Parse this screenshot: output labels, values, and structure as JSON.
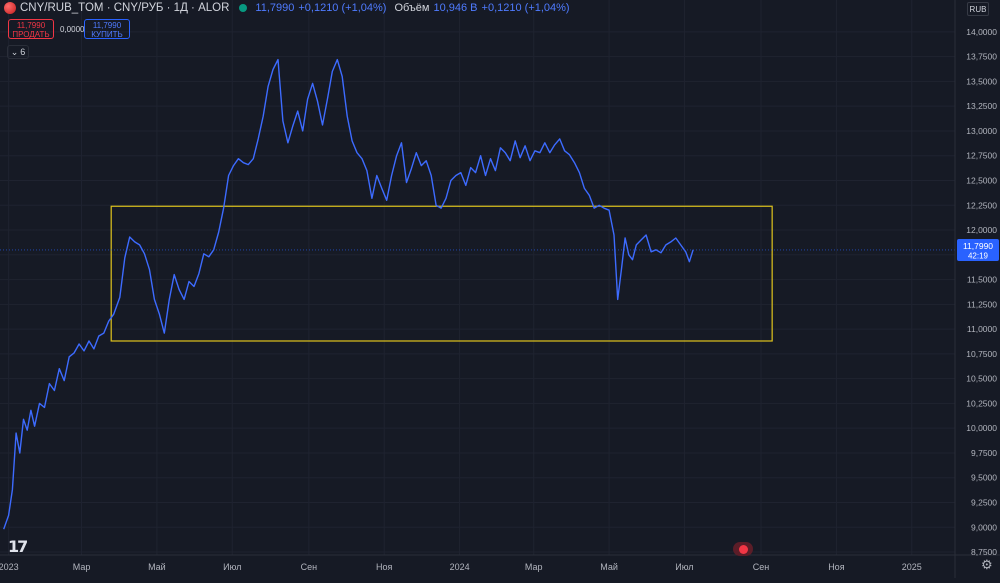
{
  "header": {
    "title": "CNY/RUB_TOM · CNY/РУБ · 1Д · ALOR",
    "price": "11,7990",
    "change": "+0,1210 (+1,04%)",
    "volume_label": "Объём",
    "volume_value": "10,946 B",
    "volume_change": "+0,1210 (+1,04%)"
  },
  "trade": {
    "sell_price": "11,7990",
    "sell_label": "ПРОДАТЬ",
    "spread": "0,0000",
    "buy_price": "11,7990",
    "buy_label": "КУПИТЬ"
  },
  "collapse_label": "6",
  "currency": "RUB",
  "last_price_label": {
    "price": "11,7990",
    "countdown": "42:19"
  },
  "colors": {
    "line": "#2962ff",
    "rect": "#e0c41c",
    "sell": "#f23645",
    "buy": "#2962ff"
  },
  "icons": {
    "logo": "tradingview-logo-icon",
    "settings": "gear-icon",
    "indicator": "record-dot-icon"
  },
  "chart_data": {
    "type": "line",
    "y_ticks": [
      "14,0000",
      "13,7500",
      "13,5000",
      "13,2500",
      "13,0000",
      "12,7500",
      "12,5000",
      "12,2500",
      "12,0000",
      "11,7500",
      "11,5000",
      "11,2500",
      "11,0000",
      "10,7500",
      "10,5000",
      "10,2500",
      "10,0000",
      "9,7500",
      "9,5000",
      "9,2500",
      "9,0000",
      "8,7500"
    ],
    "y_range": [
      8.72,
      14.14
    ],
    "x_ticks": [
      {
        "label": "2023",
        "date": "2023-01-01"
      },
      {
        "label": "Мар",
        "date": "2023-03-01"
      },
      {
        "label": "Май",
        "date": "2023-05-01"
      },
      {
        "label": "Июл",
        "date": "2023-07-01"
      },
      {
        "label": "Сен",
        "date": "2023-09-01"
      },
      {
        "label": "Ноя",
        "date": "2023-11-01"
      },
      {
        "label": "2024",
        "date": "2024-01-01"
      },
      {
        "label": "Мар",
        "date": "2024-03-01"
      },
      {
        "label": "Май",
        "date": "2024-05-01"
      },
      {
        "label": "Июл",
        "date": "2024-07-01"
      },
      {
        "label": "Сен",
        "date": "2024-09-01"
      },
      {
        "label": "Ноя",
        "date": "2024-11-01"
      },
      {
        "label": "2025",
        "date": "2025-01-01"
      }
    ],
    "x_range": [
      "2022-12-25",
      "2025-02-05"
    ],
    "series": [
      {
        "points": [
          [
            "2022-12-28",
            8.98
          ],
          [
            "2023-01-01",
            9.12
          ],
          [
            "2023-01-04",
            9.38
          ],
          [
            "2023-01-07",
            9.95
          ],
          [
            "2023-01-10",
            9.75
          ],
          [
            "2023-01-13",
            10.09
          ],
          [
            "2023-01-16",
            9.98
          ],
          [
            "2023-01-19",
            10.18
          ],
          [
            "2023-01-22",
            10.02
          ],
          [
            "2023-01-26",
            10.25
          ],
          [
            "2023-01-30",
            10.21
          ],
          [
            "2023-02-03",
            10.45
          ],
          [
            "2023-02-07",
            10.38
          ],
          [
            "2023-02-11",
            10.6
          ],
          [
            "2023-02-15",
            10.48
          ],
          [
            "2023-02-19",
            10.72
          ],
          [
            "2023-02-23",
            10.76
          ],
          [
            "2023-02-27",
            10.85
          ],
          [
            "2023-03-03",
            10.78
          ],
          [
            "2023-03-07",
            10.88
          ],
          [
            "2023-03-11",
            10.8
          ],
          [
            "2023-03-15",
            10.93
          ],
          [
            "2023-03-19",
            10.96
          ],
          [
            "2023-03-23",
            11.08
          ],
          [
            "2023-03-27",
            11.15
          ],
          [
            "2023-04-01",
            11.32
          ],
          [
            "2023-04-05",
            11.72
          ],
          [
            "2023-04-09",
            11.93
          ],
          [
            "2023-04-13",
            11.88
          ],
          [
            "2023-04-17",
            11.85
          ],
          [
            "2023-04-21",
            11.76
          ],
          [
            "2023-04-25",
            11.6
          ],
          [
            "2023-04-29",
            11.3
          ],
          [
            "2023-05-03",
            11.15
          ],
          [
            "2023-05-07",
            10.96
          ],
          [
            "2023-05-11",
            11.3
          ],
          [
            "2023-05-15",
            11.55
          ],
          [
            "2023-05-19",
            11.4
          ],
          [
            "2023-05-23",
            11.3
          ],
          [
            "2023-05-27",
            11.48
          ],
          [
            "2023-05-31",
            11.43
          ],
          [
            "2023-06-04",
            11.56
          ],
          [
            "2023-06-08",
            11.76
          ],
          [
            "2023-06-12",
            11.73
          ],
          [
            "2023-06-16",
            11.8
          ],
          [
            "2023-06-20",
            11.98
          ],
          [
            "2023-06-24",
            12.22
          ],
          [
            "2023-06-28",
            12.55
          ],
          [
            "2023-07-02",
            12.65
          ],
          [
            "2023-07-06",
            12.72
          ],
          [
            "2023-07-10",
            12.68
          ],
          [
            "2023-07-14",
            12.66
          ],
          [
            "2023-07-18",
            12.72
          ],
          [
            "2023-07-22",
            12.92
          ],
          [
            "2023-07-26",
            13.15
          ],
          [
            "2023-07-30",
            13.45
          ],
          [
            "2023-08-03",
            13.62
          ],
          [
            "2023-08-07",
            13.72
          ],
          [
            "2023-08-11",
            13.1
          ],
          [
            "2023-08-15",
            12.88
          ],
          [
            "2023-08-19",
            13.05
          ],
          [
            "2023-08-23",
            13.2
          ],
          [
            "2023-08-27",
            13.0
          ],
          [
            "2023-08-31",
            13.32
          ],
          [
            "2023-09-04",
            13.48
          ],
          [
            "2023-09-08",
            13.3
          ],
          [
            "2023-09-12",
            13.06
          ],
          [
            "2023-09-16",
            13.32
          ],
          [
            "2023-09-20",
            13.6
          ],
          [
            "2023-09-24",
            13.72
          ],
          [
            "2023-09-28",
            13.55
          ],
          [
            "2023-10-02",
            13.15
          ],
          [
            "2023-10-06",
            12.9
          ],
          [
            "2023-10-10",
            12.78
          ],
          [
            "2023-10-14",
            12.72
          ],
          [
            "2023-10-18",
            12.6
          ],
          [
            "2023-10-22",
            12.32
          ],
          [
            "2023-10-26",
            12.55
          ],
          [
            "2023-10-30",
            12.42
          ],
          [
            "2023-11-03",
            12.3
          ],
          [
            "2023-11-07",
            12.55
          ],
          [
            "2023-11-11",
            12.75
          ],
          [
            "2023-11-15",
            12.88
          ],
          [
            "2023-11-19",
            12.48
          ],
          [
            "2023-11-23",
            12.62
          ],
          [
            "2023-11-27",
            12.78
          ],
          [
            "2023-12-01",
            12.65
          ],
          [
            "2023-12-05",
            12.7
          ],
          [
            "2023-12-09",
            12.55
          ],
          [
            "2023-12-13",
            12.25
          ],
          [
            "2023-12-17",
            12.22
          ],
          [
            "2023-12-21",
            12.32
          ],
          [
            "2023-12-25",
            12.5
          ],
          [
            "2023-12-29",
            12.55
          ],
          [
            "2024-01-02",
            12.58
          ],
          [
            "2024-01-06",
            12.45
          ],
          [
            "2024-01-10",
            12.63
          ],
          [
            "2024-01-14",
            12.58
          ],
          [
            "2024-01-18",
            12.75
          ],
          [
            "2024-01-22",
            12.55
          ],
          [
            "2024-01-26",
            12.72
          ],
          [
            "2024-01-30",
            12.6
          ],
          [
            "2024-02-03",
            12.83
          ],
          [
            "2024-02-07",
            12.78
          ],
          [
            "2024-02-11",
            12.7
          ],
          [
            "2024-02-15",
            12.9
          ],
          [
            "2024-02-19",
            12.73
          ],
          [
            "2024-02-23",
            12.85
          ],
          [
            "2024-02-27",
            12.7
          ],
          [
            "2024-03-02",
            12.8
          ],
          [
            "2024-03-06",
            12.78
          ],
          [
            "2024-03-10",
            12.88
          ],
          [
            "2024-03-14",
            12.78
          ],
          [
            "2024-03-18",
            12.86
          ],
          [
            "2024-03-22",
            12.92
          ],
          [
            "2024-03-26",
            12.8
          ],
          [
            "2024-03-30",
            12.76
          ],
          [
            "2024-04-03",
            12.68
          ],
          [
            "2024-04-07",
            12.58
          ],
          [
            "2024-04-11",
            12.42
          ],
          [
            "2024-04-15",
            12.35
          ],
          [
            "2024-04-19",
            12.22
          ],
          [
            "2024-04-23",
            12.25
          ],
          [
            "2024-04-27",
            12.22
          ],
          [
            "2024-05-01",
            12.2
          ],
          [
            "2024-05-05",
            11.95
          ],
          [
            "2024-05-08",
            11.3
          ],
          [
            "2024-05-11",
            11.6
          ],
          [
            "2024-05-14",
            11.92
          ],
          [
            "2024-05-17",
            11.75
          ],
          [
            "2024-05-20",
            11.7
          ],
          [
            "2024-05-23",
            11.85
          ],
          [
            "2024-05-27",
            11.9
          ],
          [
            "2024-05-31",
            11.95
          ],
          [
            "2024-06-04",
            11.78
          ],
          [
            "2024-06-08",
            11.8
          ],
          [
            "2024-06-12",
            11.77
          ],
          [
            "2024-06-16",
            11.85
          ],
          [
            "2024-06-20",
            11.88
          ],
          [
            "2024-06-24",
            11.92
          ],
          [
            "2024-06-28",
            11.85
          ],
          [
            "2024-07-02",
            11.78
          ],
          [
            "2024-07-05",
            11.68
          ],
          [
            "2024-07-08",
            11.8
          ]
        ]
      }
    ],
    "annotation_rect": {
      "x_from": "2023-03-25",
      "x_to": "2024-09-10",
      "y_from": 10.88,
      "y_to": 12.24
    },
    "grid": true,
    "ylim": [
      8.72,
      14.14
    ]
  }
}
